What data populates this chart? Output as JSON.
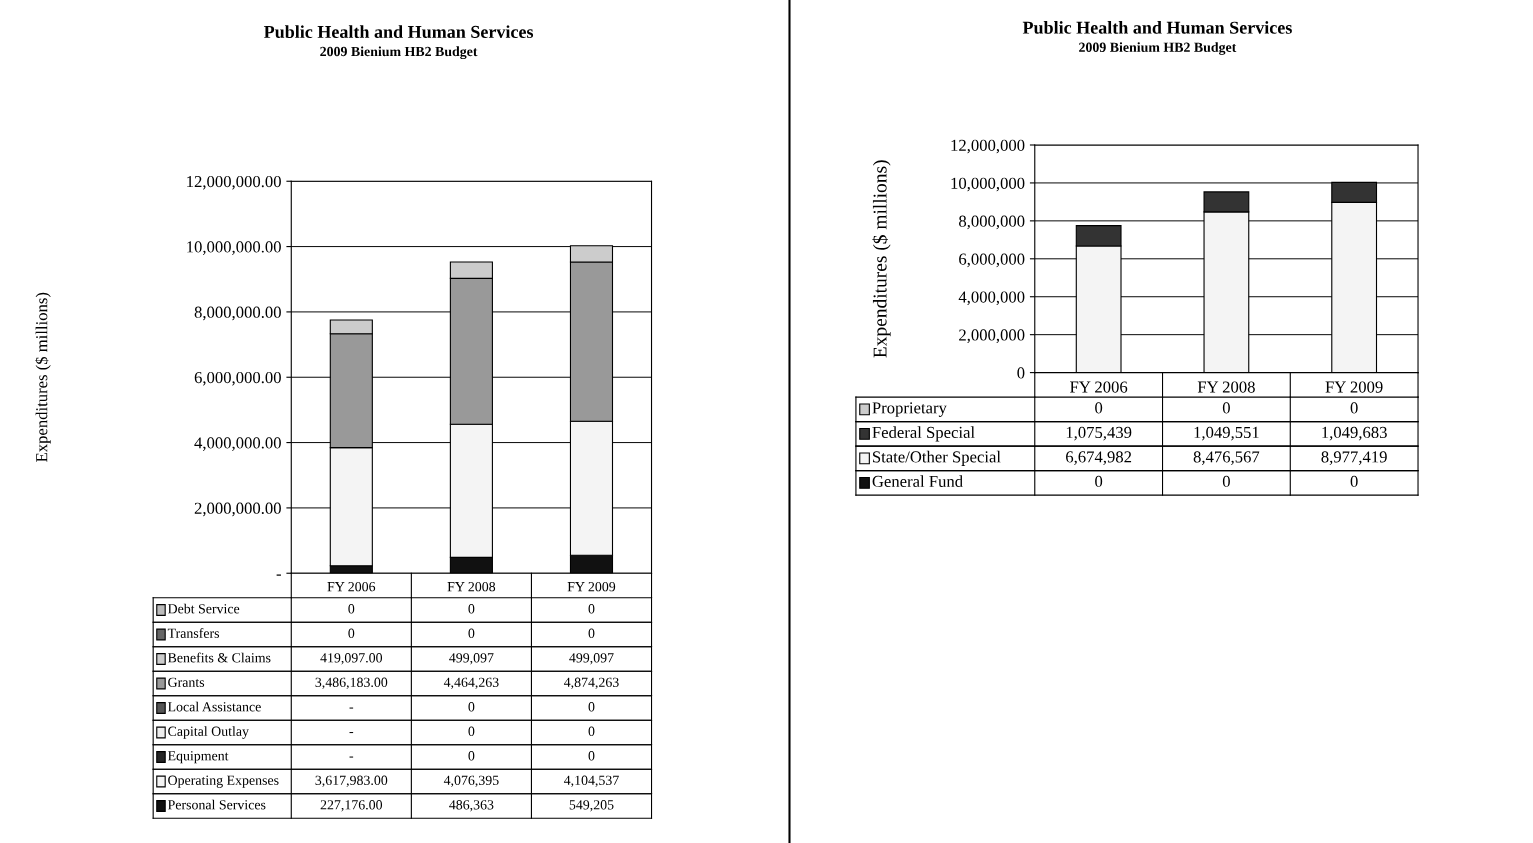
{
  "chart_data": [
    {
      "type": "bar",
      "title": "Public Health and Human Services",
      "subtitle": "2009 Bienium HB2 Budget",
      "ylabel": "Expenditures ($ millions)",
      "stacked": true,
      "categories": [
        "FY 2006",
        "FY 2008",
        "FY 2009"
      ],
      "ylim": [
        0,
        12000000
      ],
      "yticks": [
        {
          "value": 0,
          "label": "-"
        },
        {
          "value": 2000000,
          "label": "2,000,000.00"
        },
        {
          "value": 4000000,
          "label": "4,000,000.00"
        },
        {
          "value": 6000000,
          "label": "6,000,000.00"
        },
        {
          "value": 8000000,
          "label": "8,000,000.00"
        },
        {
          "value": 10000000,
          "label": "10,000,000.00"
        },
        {
          "value": 12000000,
          "label": "12,000,000.00"
        }
      ],
      "grid": "y",
      "legend": "bottom",
      "series": [
        {
          "name": "Personal Services",
          "color": "#111111",
          "values": [
            227176,
            486363,
            549205
          ],
          "value_labels": [
            "227,176.00",
            "486,363",
            "549,205"
          ]
        },
        {
          "name": "Operating Expenses",
          "color": "#f4f4f4",
          "values": [
            3617983,
            4076395,
            4104537
          ],
          "value_labels": [
            "3,617,983.00",
            "4,076,395",
            "4,104,537"
          ]
        },
        {
          "name": "Equipment",
          "color": "#262626",
          "values": [
            0,
            0,
            0
          ],
          "value_labels": [
            "-",
            "0",
            "0"
          ]
        },
        {
          "name": "Capital Outlay",
          "color": "#eeeeee",
          "values": [
            0,
            0,
            0
          ],
          "value_labels": [
            "-",
            "0",
            "0"
          ]
        },
        {
          "name": "Local Assistance",
          "color": "#555555",
          "values": [
            0,
            0,
            0
          ],
          "value_labels": [
            "-",
            "0",
            "0"
          ]
        },
        {
          "name": "Grants",
          "color": "#999999",
          "values": [
            3486183,
            4464263,
            4874263
          ],
          "value_labels": [
            "3,486,183.00",
            "4,464,263",
            "4,874,263"
          ]
        },
        {
          "name": "Benefits & Claims",
          "color": "#cccccc",
          "values": [
            419097,
            499097,
            499097
          ],
          "value_labels": [
            "419,097.00",
            "499,097",
            "499,097"
          ]
        },
        {
          "name": "Transfers",
          "color": "#666666",
          "values": [
            0,
            0,
            0
          ],
          "value_labels": [
            "0",
            "0",
            "0"
          ]
        },
        {
          "name": "Debt Service",
          "color": "#bbbbbb",
          "values": [
            0,
            0,
            0
          ],
          "value_labels": [
            "0",
            "0",
            "0"
          ]
        }
      ]
    },
    {
      "type": "bar",
      "title": "Public Health and Human Services",
      "subtitle": "2009 Bienium HB2 Budget",
      "ylabel": "Expenditures ($ millions)",
      "stacked": true,
      "categories": [
        "FY 2006",
        "FY 2008",
        "FY 2009"
      ],
      "ylim": [
        0,
        12000000
      ],
      "yticks": [
        0,
        {
          "value": 2000000,
          "label": "2,000,000"
        },
        {
          "value": 4000000,
          "label": "4,000,000"
        },
        {
          "value": 6000000,
          "label": "6,000,000"
        },
        {
          "value": 8000000,
          "label": "8,000,000"
        },
        {
          "value": 10000000,
          "label": "10,000,000"
        },
        {
          "value": 12000000,
          "label": "12,000,000"
        }
      ],
      "grid": "y",
      "legend": "bottom",
      "series": [
        {
          "name": "General Fund",
          "color": "#111111",
          "values": [
            0,
            0,
            0
          ],
          "value_labels": [
            "0",
            "0",
            "0"
          ]
        },
        {
          "name": "State/Other Special",
          "color": "#f4f4f4",
          "values": [
            6674982,
            8476567,
            8977419
          ],
          "value_labels": [
            "6,674,982",
            "8,476,567",
            "8,977,419"
          ]
        },
        {
          "name": "Federal Special",
          "color": "#333333",
          "values": [
            1075439,
            1049551,
            1049683
          ],
          "value_labels": [
            "1,075,439",
            "1,049,551",
            "1,049,683"
          ]
        },
        {
          "name": "Proprietary",
          "color": "#cccccc",
          "values": [
            0,
            0,
            0
          ],
          "value_labels": [
            "0",
            "0",
            "0"
          ]
        }
      ]
    }
  ]
}
